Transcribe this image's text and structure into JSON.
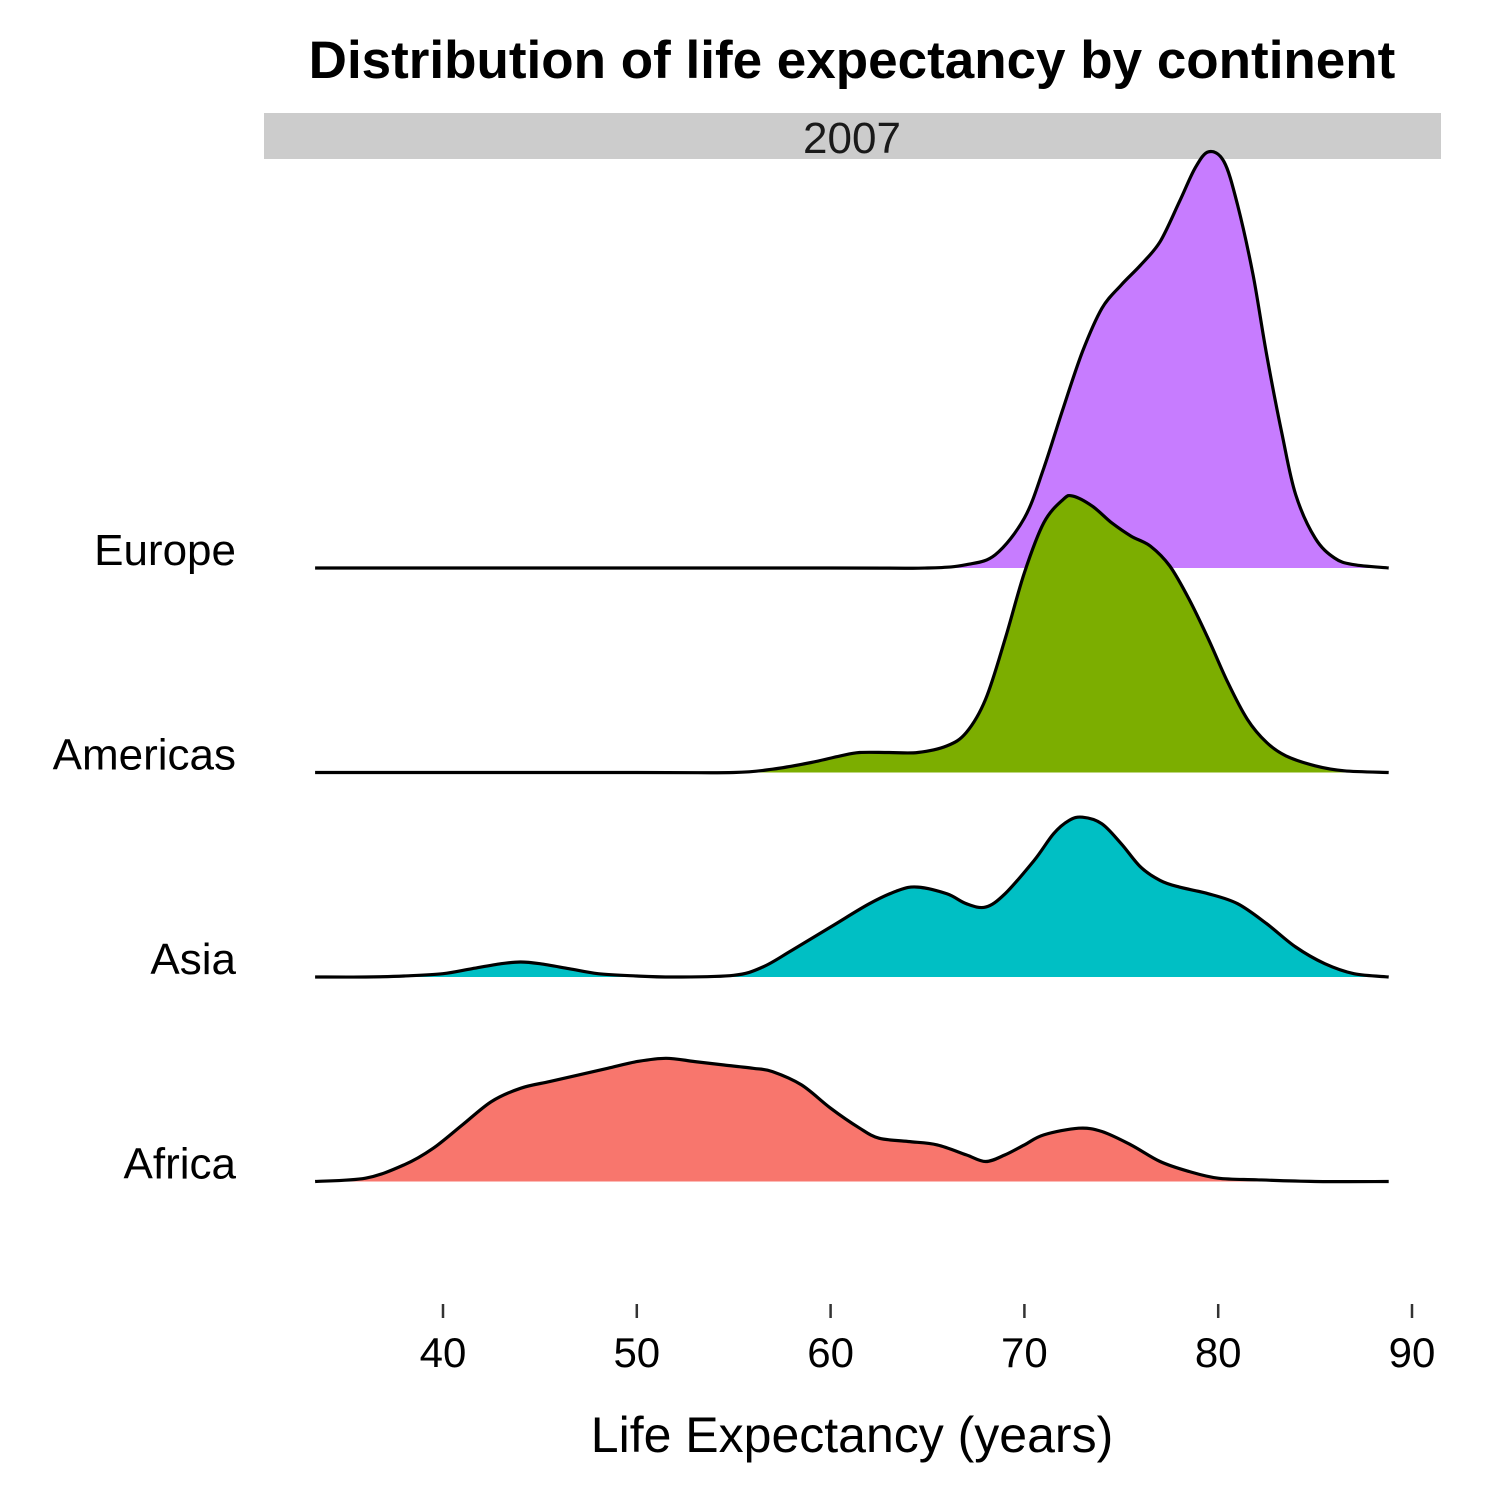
{
  "chart_data": {
    "type": "ridgeline",
    "title": "Distribution of life expectancy by continent",
    "facet": "2007",
    "xlabel": "Life Expectancy (years)",
    "ylabel": "",
    "xlim": [
      33.3,
      91.6
    ],
    "x_ticks": [
      40,
      50,
      60,
      70,
      80,
      90
    ],
    "grid": false,
    "legend": "none",
    "series": [
      {
        "name": "Africa",
        "color": "#F8766D",
        "points": [
          [
            33.4,
            0.0
          ],
          [
            36.0,
            0.01
          ],
          [
            38.0,
            0.05
          ],
          [
            39.5,
            0.1
          ],
          [
            41.0,
            0.17
          ],
          [
            42.5,
            0.24
          ],
          [
            44.0,
            0.28
          ],
          [
            45.5,
            0.3
          ],
          [
            47.0,
            0.32
          ],
          [
            48.5,
            0.34
          ],
          [
            50.0,
            0.36
          ],
          [
            51.5,
            0.37
          ],
          [
            53.0,
            0.36
          ],
          [
            54.5,
            0.35
          ],
          [
            56.0,
            0.34
          ],
          [
            57.0,
            0.33
          ],
          [
            58.5,
            0.29
          ],
          [
            60.0,
            0.22
          ],
          [
            61.5,
            0.16
          ],
          [
            62.5,
            0.13
          ],
          [
            64.0,
            0.12
          ],
          [
            65.5,
            0.11
          ],
          [
            67.0,
            0.08
          ],
          [
            68.0,
            0.06
          ],
          [
            69.0,
            0.08
          ],
          [
            70.0,
            0.11
          ],
          [
            71.0,
            0.14
          ],
          [
            72.8,
            0.16
          ],
          [
            74.0,
            0.15
          ],
          [
            75.5,
            0.11
          ],
          [
            77.0,
            0.06
          ],
          [
            78.5,
            0.03
          ],
          [
            80.0,
            0.01
          ],
          [
            82.0,
            0.005
          ],
          [
            85.0,
            0.0
          ],
          [
            88.8,
            0.0
          ]
        ]
      },
      {
        "name": "Asia",
        "color": "#00BFC4",
        "points": [
          [
            33.4,
            0.0
          ],
          [
            36.0,
            0.0
          ],
          [
            38.0,
            0.003
          ],
          [
            40.0,
            0.01
          ],
          [
            41.5,
            0.025
          ],
          [
            43.0,
            0.04
          ],
          [
            44.0,
            0.045
          ],
          [
            45.0,
            0.04
          ],
          [
            46.5,
            0.025
          ],
          [
            48.0,
            0.01
          ],
          [
            50.0,
            0.003
          ],
          [
            52.0,
            0.0
          ],
          [
            55.0,
            0.005
          ],
          [
            56.5,
            0.03
          ],
          [
            58.0,
            0.08
          ],
          [
            60.0,
            0.15
          ],
          [
            62.0,
            0.22
          ],
          [
            63.5,
            0.26
          ],
          [
            64.5,
            0.27
          ],
          [
            66.0,
            0.25
          ],
          [
            67.0,
            0.22
          ],
          [
            68.0,
            0.21
          ],
          [
            69.0,
            0.25
          ],
          [
            70.5,
            0.35
          ],
          [
            71.5,
            0.43
          ],
          [
            72.3,
            0.47
          ],
          [
            73.0,
            0.48
          ],
          [
            74.0,
            0.46
          ],
          [
            75.0,
            0.4
          ],
          [
            76.0,
            0.33
          ],
          [
            77.0,
            0.29
          ],
          [
            78.0,
            0.27
          ],
          [
            79.5,
            0.25
          ],
          [
            81.0,
            0.22
          ],
          [
            82.5,
            0.16
          ],
          [
            84.0,
            0.09
          ],
          [
            85.5,
            0.04
          ],
          [
            87.0,
            0.01
          ],
          [
            88.8,
            0.0
          ]
        ]
      },
      {
        "name": "Americas",
        "color": "#7CAE00",
        "points": [
          [
            33.4,
            0.0
          ],
          [
            50.0,
            0.0
          ],
          [
            55.0,
            0.0
          ],
          [
            57.0,
            0.01
          ],
          [
            59.0,
            0.03
          ],
          [
            60.5,
            0.05
          ],
          [
            61.5,
            0.06
          ],
          [
            63.0,
            0.06
          ],
          [
            64.5,
            0.06
          ],
          [
            66.0,
            0.08
          ],
          [
            67.0,
            0.12
          ],
          [
            68.0,
            0.22
          ],
          [
            69.0,
            0.4
          ],
          [
            70.0,
            0.6
          ],
          [
            71.0,
            0.75
          ],
          [
            72.0,
            0.82
          ],
          [
            72.5,
            0.83
          ],
          [
            73.5,
            0.8
          ],
          [
            74.5,
            0.75
          ],
          [
            75.5,
            0.71
          ],
          [
            76.5,
            0.68
          ],
          [
            77.5,
            0.62
          ],
          [
            78.5,
            0.52
          ],
          [
            79.5,
            0.4
          ],
          [
            80.5,
            0.27
          ],
          [
            81.5,
            0.16
          ],
          [
            82.5,
            0.09
          ],
          [
            83.5,
            0.05
          ],
          [
            85.0,
            0.02
          ],
          [
            86.5,
            0.005
          ],
          [
            88.8,
            0.0
          ]
        ]
      },
      {
        "name": "Europe",
        "color": "#C77CFF",
        "points": [
          [
            33.4,
            0.0
          ],
          [
            60.0,
            0.0
          ],
          [
            65.0,
            0.0
          ],
          [
            67.0,
            0.01
          ],
          [
            68.5,
            0.04
          ],
          [
            70.0,
            0.15
          ],
          [
            71.0,
            0.3
          ],
          [
            72.0,
            0.48
          ],
          [
            73.0,
            0.65
          ],
          [
            74.0,
            0.78
          ],
          [
            75.0,
            0.85
          ],
          [
            76.0,
            0.91
          ],
          [
            77.0,
            0.98
          ],
          [
            78.0,
            1.1
          ],
          [
            78.8,
            1.2
          ],
          [
            79.5,
            1.25
          ],
          [
            80.3,
            1.22
          ],
          [
            81.0,
            1.09
          ],
          [
            81.8,
            0.88
          ],
          [
            82.5,
            0.64
          ],
          [
            83.3,
            0.4
          ],
          [
            84.0,
            0.22
          ],
          [
            85.0,
            0.09
          ],
          [
            86.0,
            0.03
          ],
          [
            87.0,
            0.01
          ],
          [
            88.8,
            0.0
          ]
        ]
      }
    ]
  }
}
